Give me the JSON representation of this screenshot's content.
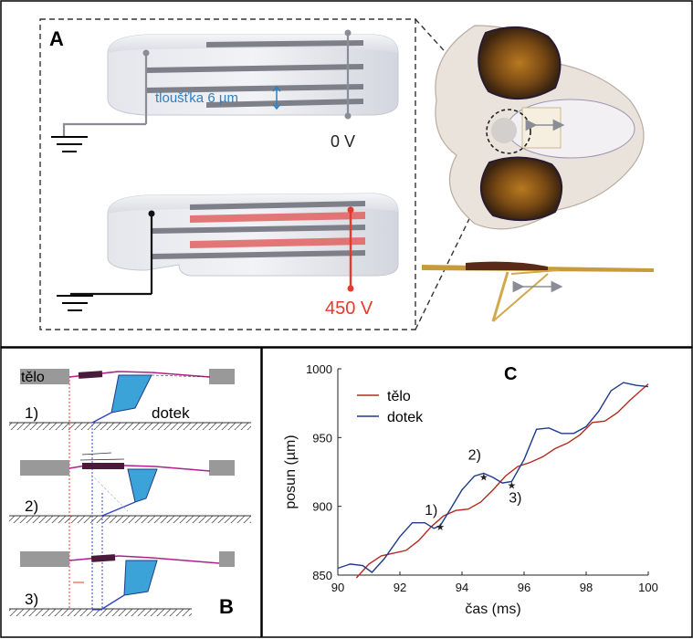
{
  "panel_a": {
    "label": "A",
    "thickness_label": "tloušťka 6 µm",
    "voltage_off": "0 V",
    "voltage_on": "450 V"
  },
  "panel_b": {
    "label": "B",
    "body_label": "tělo",
    "contact_label": "dotek",
    "steps": [
      "1)",
      "2)",
      "3)"
    ]
  },
  "panel_c": {
    "label": "C"
  },
  "colors": {
    "body_line": "#b52a1e",
    "contact_line": "#1f3b8a",
    "voltage_on": "#e53a2c",
    "thickness_blue": "#2f7fc1",
    "wedge_blue": "#3ba3d8",
    "flexure_magenta": "#b0208c"
  },
  "chart_data": {
    "type": "line",
    "title": "",
    "xlabel": "čas (ms)",
    "ylabel": "posun (µm)",
    "xlim": [
      90,
      100
    ],
    "ylim": [
      850,
      1000
    ],
    "x_ticks": [
      90,
      92,
      94,
      96,
      98,
      100
    ],
    "y_ticks": [
      850,
      900,
      950,
      1000
    ],
    "grid": false,
    "legend": "top-left",
    "series": [
      {
        "name": "tělo",
        "color": "#b52a1e",
        "x": [
          90.6,
          91.0,
          91.4,
          91.8,
          92.2,
          92.6,
          93.0,
          93.4,
          93.8,
          94.2,
          94.6,
          95.0,
          95.4,
          95.8,
          96.2,
          96.6,
          97.0,
          97.4,
          97.8,
          98.2,
          98.6,
          99.0,
          99.4,
          99.8,
          100.0
        ],
        "values": [
          848,
          858,
          864,
          866,
          868,
          875,
          885,
          893,
          897,
          898,
          903,
          912,
          922,
          929,
          932,
          936,
          942,
          946,
          952,
          961,
          962,
          968,
          977,
          985,
          989
        ]
      },
      {
        "name": "dotek",
        "color": "#1f3b8a",
        "x": [
          90.0,
          90.4,
          90.8,
          91.1,
          91.5,
          92.0,
          92.4,
          92.8,
          93.1,
          93.3,
          93.6,
          94.0,
          94.4,
          94.7,
          95.0,
          95.3,
          95.6,
          96.0,
          96.4,
          96.8,
          97.2,
          97.6,
          98.0,
          98.4,
          98.8,
          99.2,
          99.6,
          100.0
        ],
        "values": [
          855,
          858,
          857,
          852,
          862,
          878,
          888,
          888,
          884,
          886,
          897,
          912,
          922,
          924,
          921,
          917,
          918,
          934,
          956,
          957,
          953,
          953,
          958,
          969,
          984,
          990,
          988,
          987
        ]
      }
    ],
    "annotations": [
      {
        "text": "1)",
        "x": 93.3,
        "y": 886
      },
      {
        "text": "2)",
        "x": 94.7,
        "y": 922
      },
      {
        "text": "3)",
        "x": 95.6,
        "y": 916
      }
    ]
  }
}
